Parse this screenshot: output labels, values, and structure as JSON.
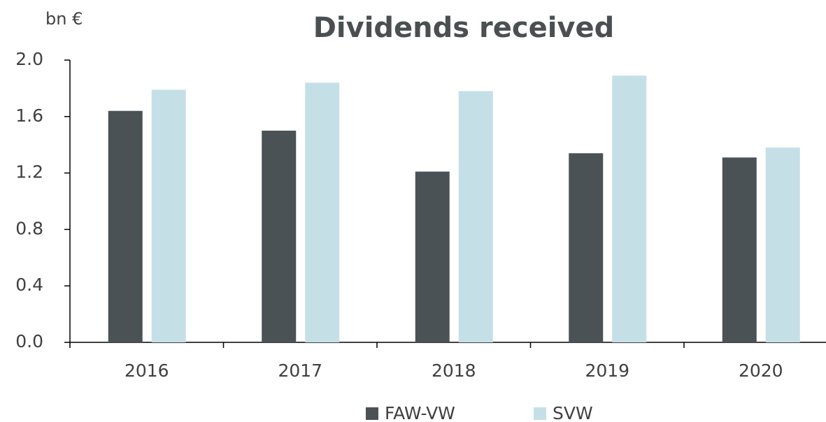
{
  "chart_data": {
    "type": "bar",
    "title": "Dividends received",
    "y_label": "bn €",
    "categories": [
      "2016",
      "2017",
      "2018",
      "2019",
      "2020"
    ],
    "series": [
      {
        "name": "FAW-VW",
        "color": "#4b5255",
        "values": [
          1.64,
          1.5,
          1.21,
          1.34,
          1.31
        ]
      },
      {
        "name": "SVW",
        "color": "#c5dfe6",
        "values": [
          1.79,
          1.84,
          1.78,
          1.89,
          1.38
        ]
      }
    ],
    "ylim": [
      0,
      2
    ],
    "yticks": [
      {
        "value": 0,
        "label": "0.0"
      },
      0.4,
      0.8,
      1.2,
      1.6,
      {
        "value": 2,
        "label": "2.0"
      }
    ],
    "grid": false,
    "legend": "bottom"
  }
}
